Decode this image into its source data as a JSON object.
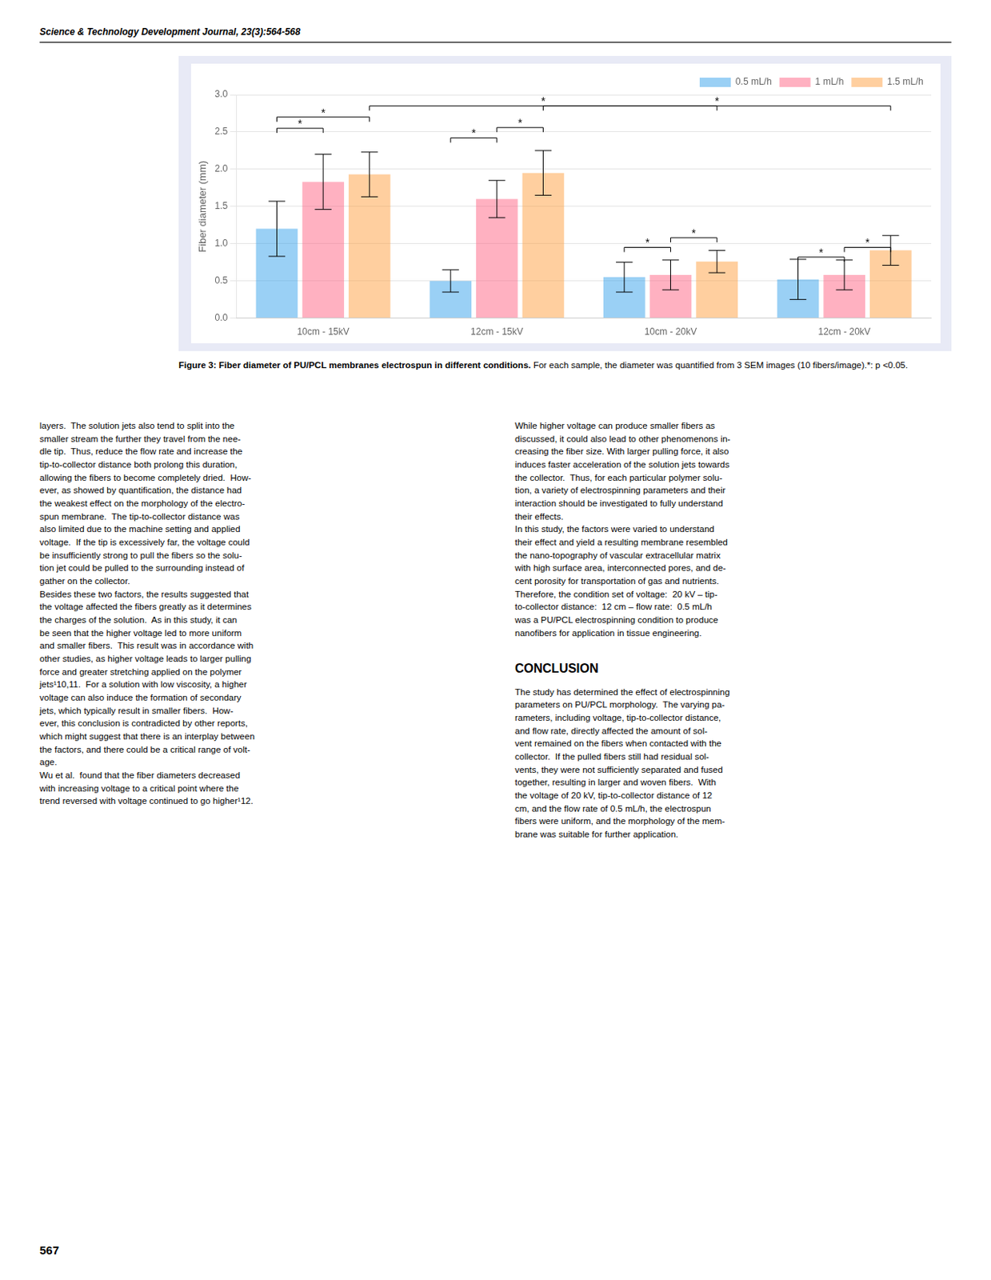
{
  "header": "Science & Technology Development Journal, 23(3):564-568",
  "chart_data": {
    "type": "bar",
    "ylabel": "Fiber diameter (mm)",
    "categories": [
      "10cm - 15kV",
      "12cm - 15kV",
      "10cm - 20kV",
      "12cm - 20kV"
    ],
    "series": [
      {
        "name": "0.5 mL/h",
        "values": [
          1.2,
          0.5,
          0.55,
          0.52
        ],
        "errors": [
          0.37,
          0.15,
          0.2,
          0.27
        ]
      },
      {
        "name": "1 mL/h",
        "values": [
          1.83,
          1.6,
          0.58,
          0.58
        ],
        "errors": [
          0.37,
          0.25,
          0.2,
          0.2
        ]
      },
      {
        "name": "1.5 mL/h",
        "values": [
          1.93,
          1.95,
          0.76,
          0.91
        ],
        "errors": [
          0.3,
          0.3,
          0.15,
          0.2
        ]
      }
    ],
    "ylim": [
      0.0,
      3.0
    ],
    "yticks": [
      {
        "value": 0,
        "label": "0.0"
      },
      0.5,
      {
        "value": 1,
        "label": "1.0"
      },
      1.5,
      {
        "value": 2,
        "label": "2.0"
      },
      2.5,
      {
        "value": 3,
        "label": "3.0"
      }
    ],
    "grid": true,
    "legend": "upper right",
    "annotations": [
      {
        "from": [
          0,
          0
        ],
        "to": [
          0,
          1
        ],
        "y": 2.55,
        "label": "*"
      },
      {
        "from": [
          0,
          0
        ],
        "to": [
          0,
          2
        ],
        "y": 2.7,
        "label": "*"
      },
      {
        "from": [
          1,
          0
        ],
        "to": [
          1,
          1
        ],
        "y": 2.42,
        "label": "*"
      },
      {
        "from": [
          1,
          1
        ],
        "to": [
          1,
          2
        ],
        "y": 2.56,
        "label": "*"
      },
      {
        "from": [
          2,
          0
        ],
        "to": [
          2,
          1
        ],
        "y": 0.95,
        "label": "*"
      },
      {
        "from": [
          2,
          1
        ],
        "to": [
          2,
          2
        ],
        "y": 1.08,
        "label": "*"
      },
      {
        "from": [
          3,
          0
        ],
        "to": [
          3,
          1
        ],
        "y": 0.82,
        "label": "*"
      },
      {
        "from": [
          3,
          1
        ],
        "to": [
          3,
          2
        ],
        "y": 0.95,
        "label": "*"
      },
      {
        "from": [
          0,
          2
        ],
        "to": [
          2,
          2
        ],
        "y": 2.85,
        "label": "*"
      },
      {
        "from": [
          1,
          2
        ],
        "to": [
          3,
          2
        ],
        "y": 2.85,
        "label": "*"
      }
    ]
  },
  "caption_bold": "Figure 3: Fiber diameter of PU/PCL membranes electrospun in different conditions.",
  "caption": " For each sample, the diameter was quantified from 3 SEM images (10 fibers/image).*: p <0.05.",
  "body_left": "layers.  The solution jets also tend to split into the\nsmaller stream the further they travel from the nee-\ndle tip.  Thus, reduce the flow rate and increase the\ntip-to-collector distance both prolong this duration,\nallowing the fibers to become completely dried.  How-\never, as showed by quantification, the distance had\nthe weakest effect on the morphology of the electro-\nspun membrane.  The tip-to-collector distance was\nalso limited due to the machine setting and applied\nvoltage.  If the tip is excessively far, the voltage could\nbe insufficiently strong to pull the fibers so the solu-\ntion jet could be pulled to the surrounding instead of\ngather on the collector.\nBesides these two factors, the results suggested that\nthe voltage affected the fibers greatly as it determines\nthe charges of the solution.  As in this study, it can\nbe seen that the higher voltage led to more uniform\nand smaller fibers.  This result was in accordance with\nother studies, as higher voltage leads to larger pulling\nforce and greater stretching applied on the polymer\njets¹10,11.  For a solution with low viscosity, a higher\nvoltage can also induce the formation of secondary\njets, which typically result in smaller fibers.  How-\never, this conclusion is contradicted by other reports,\nwhich might suggest that there is an interplay between\nthe factors, and there could be a critical range of volt-\nage.\nWu et al.  found that the fiber diameters decreased\nwith increasing voltage to a critical point where the\ntrend reversed with voltage continued to go higher¹12.",
  "body_right": "While higher voltage can produce smaller fibers as\ndiscussed, it could also lead to other phenomenons in-\ncreasing the fiber size. With larger pulling force, it also\ninduces faster acceleration of the solution jets towards\nthe collector.  Thus, for each particular polymer solu-\ntion, a variety of electrospinning parameters and their\ninteraction should be investigated to fully understand\ntheir effects.\nIn this study, the factors were varied to understand\ntheir effect and yield a resulting membrane resembled\nthe nano-topography of vascular extracellular matrix\nwith high surface area, interconnected pores, and de-\ncent porosity for transportation of gas and nutrients.\nTherefore, the condition set of voltage:  20 kV – tip-\nto-collector distance:  12 cm – flow rate:  0.5 mL/h\nwas a PU/PCL electrospinning condition to produce\nnanofibers for application in tissue engineering.",
  "conclusion_title": "CONCLUSION",
  "conclusion": "The study has determined the effect of electrospinning\nparameters on PU/PCL morphology.  The varying pa-\nrameters, including voltage, tip-to-collector distance,\nand flow rate, directly affected the amount of sol-\nvent remained on the fibers when contacted with the\ncollector.  If the pulled fibers still had residual sol-\nvents, they were not sufficiently separated and fused\ntogether, resulting in larger and woven fibers.  With\nthe voltage of 20 kV, tip-to-collector distance of 12\ncm, and the flow rate of 0.5 mL/h, the electrospun\nfibers were uniform, and the morphology of the mem-\nbrane was suitable for further application.",
  "page_number": "567"
}
